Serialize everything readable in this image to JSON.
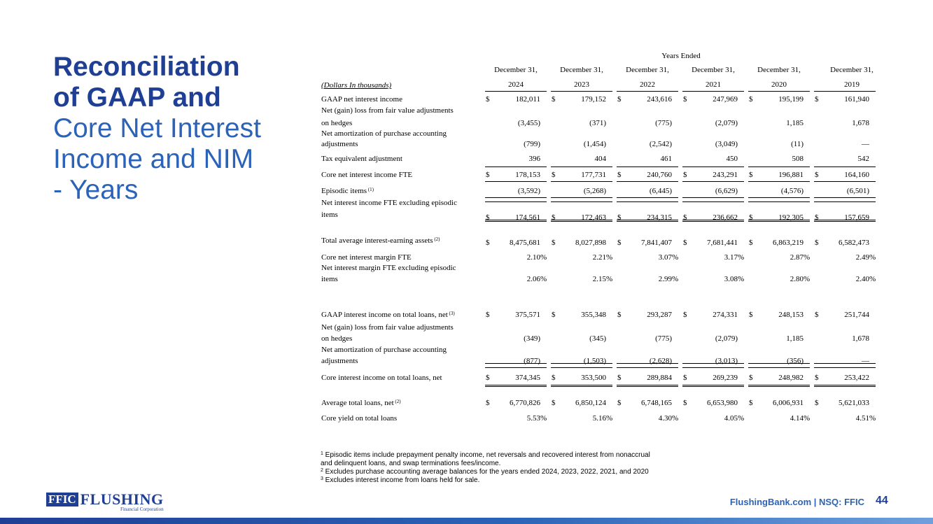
{
  "slide": {
    "title_line1": "Reconciliation",
    "title_line2": "of GAAP and",
    "title_line3": "Core Net Interest",
    "title_line4": "Income and NIM",
    "title_line5": "- Years",
    "page_number": "44",
    "footer_text": "FlushingBank.com  |  NSQ: FFIC"
  },
  "logo": {
    "box_text": "FFIC",
    "name": "FLUSHING",
    "sub": "Financial Corporation"
  },
  "table": {
    "years_ended": "Years Ended",
    "units_label": "(Dollars In thousands)",
    "col_months": [
      "December 31,",
      "December 31,",
      "December 31,",
      "December 31,",
      "December 31,",
      "December 31,"
    ],
    "col_years": [
      "2024",
      "2023",
      "2022",
      "2021",
      "2020",
      "2019"
    ],
    "rows": [
      {
        "label": [
          "GAAP net interest income"
        ],
        "sup": "",
        "dollar": true,
        "pct": false,
        "values": [
          "182,011",
          "179,152",
          "243,616",
          "247,969",
          "195,199",
          "161,940"
        ]
      },
      {
        "label": [
          "Net (gain) loss from fair value adjustments",
          "on hedges"
        ],
        "sup": "",
        "dollar": false,
        "pct": false,
        "values": [
          "(3,455)",
          "(371)",
          "(775)",
          "(2,079)",
          "1,185",
          "1,678"
        ]
      },
      {
        "label": [
          "Net amortization of purchase accounting",
          "adjustments"
        ],
        "sup": "",
        "dollar": false,
        "pct": false,
        "values": [
          "(799)",
          "(1,454)",
          "(2,542)",
          "(3,049)",
          "(11)",
          "—"
        ]
      },
      {
        "label": [
          "Tax equivalent adjustment"
        ],
        "sup": "",
        "dollar": false,
        "pct": false,
        "values": [
          "396",
          "404",
          "461",
          "450",
          "508",
          "542"
        ]
      },
      {
        "label": [
          "Core net interest income FTE"
        ],
        "sup": "",
        "dollar": true,
        "pct": false,
        "values": [
          "178,153",
          "177,731",
          "240,760",
          "243,291",
          "196,881",
          "164,160"
        ]
      },
      {
        "label": [
          "Episodic items"
        ],
        "sup": "(1)",
        "dollar": false,
        "pct": false,
        "values": [
          "(3,592)",
          "(5,268)",
          "(6,445)",
          "(6,629)",
          "(4,576)",
          "(6,501)"
        ]
      },
      {
        "label": [
          "Net interest income FTE excluding episodic",
          "items"
        ],
        "sup": "",
        "dollar": true,
        "pct": false,
        "values": [
          "174,561",
          "172,463",
          "234,315",
          "236,662",
          "192,305",
          "157,659"
        ]
      },
      {
        "label": [
          "Total average interest-earning assets"
        ],
        "sup": "(2)",
        "dollar": true,
        "pct": false,
        "values": [
          "8,475,681",
          "8,027,898",
          "7,841,407",
          "7,681,441",
          "6,863,219",
          "6,582,473"
        ]
      },
      {
        "label": [
          "Core net interest margin FTE"
        ],
        "sup": "",
        "dollar": false,
        "pct": true,
        "values": [
          "2.10",
          "2.21",
          "3.07",
          "3.17",
          "2.87",
          "2.49"
        ]
      },
      {
        "label": [
          "Net interest margin FTE excluding episodic",
          "items"
        ],
        "sup": "",
        "dollar": false,
        "pct": true,
        "values": [
          "2.06",
          "2.15",
          "2.99",
          "3.08",
          "2.80",
          "2.40"
        ]
      },
      {
        "label": [
          "GAAP interest income on total loans, net"
        ],
        "sup": "(3)",
        "dollar": true,
        "pct": false,
        "values": [
          "375,571",
          "355,348",
          "293,287",
          "274,331",
          "248,153",
          "251,744"
        ]
      },
      {
        "label": [
          "Net (gain) loss from fair value adjustments",
          "on hedges"
        ],
        "sup": "",
        "dollar": false,
        "pct": false,
        "values": [
          "(349)",
          "(345)",
          "(775)",
          "(2,079)",
          "1,185",
          "1,678"
        ]
      },
      {
        "label": [
          "Net amortization of purchase accounting",
          "adjustments"
        ],
        "sup": "",
        "dollar": false,
        "pct": false,
        "values": [
          "(877)",
          "(1,503)",
          "(2,628)",
          "(3,013)",
          "(356)",
          "—"
        ]
      },
      {
        "label": [
          "Core interest income on total loans, net"
        ],
        "sup": "",
        "dollar": true,
        "pct": false,
        "values": [
          "374,345",
          "353,500",
          "289,884",
          "269,239",
          "248,982",
          "253,422"
        ]
      },
      {
        "label": [
          "Average total loans, net"
        ],
        "sup": "(2)",
        "dollar": true,
        "pct": false,
        "values": [
          "6,770,826",
          "6,850,124",
          "6,748,165",
          "6,653,980",
          "6,006,931",
          "5,621,033"
        ]
      },
      {
        "label": [
          "Core yield on total loans"
        ],
        "sup": "",
        "dollar": false,
        "pct": true,
        "values": [
          "5.53",
          "5.16",
          "4.30",
          "4.05",
          "4.14",
          "4.51"
        ]
      }
    ],
    "dollar_sign": "$",
    "percent_sign": "%"
  },
  "footnotes": [
    {
      "num": "1",
      "lines": [
        "Episodic items include prepayment penalty income, net reversals and recovered interest from nonaccrual",
        "and delinquent loans, and swap terminations fees/income."
      ]
    },
    {
      "num": "2",
      "lines": [
        "Excludes purchase accounting average balances for the years ended 2024, 2023, 2022, 2021, and 2020"
      ]
    },
    {
      "num": "3",
      "lines": [
        "Excludes interest income from loans held for sale."
      ]
    }
  ]
}
